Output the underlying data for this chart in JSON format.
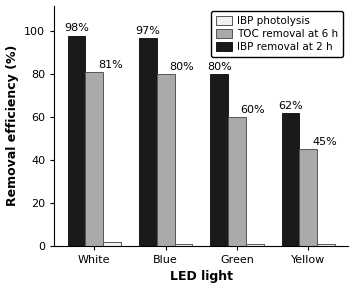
{
  "categories": [
    "White",
    "Blue",
    "Green",
    "Yellow"
  ],
  "series": [
    {
      "label": "IBP removal at 2 h",
      "values": [
        98,
        97,
        80,
        62
      ],
      "color": "#1a1a1a",
      "edgecolor": "#1a1a1a"
    },
    {
      "label": "TOC removal at 6 h",
      "values": [
        81,
        80,
        60,
        45
      ],
      "color": "#aaaaaa",
      "edgecolor": "#555555"
    },
    {
      "label": "IBP photolysis",
      "values": [
        2,
        1,
        1,
        1
      ],
      "color": "#f0f0f0",
      "edgecolor": "#555555"
    }
  ],
  "ibp_removal_labels": [
    "98%",
    "97%",
    "80%",
    "62%"
  ],
  "toc_removal_labels": [
    "81%",
    "80%",
    "60%",
    "45%"
  ],
  "legend_order": [
    2,
    1,
    0
  ],
  "legend_labels": [
    "IBP photolysis",
    "TOC removal at 6 h",
    "IBP removal at 2 h"
  ],
  "xlabel": "LED light",
  "ylabel": "Removal efficiency (%)",
  "ylim": [
    0,
    112
  ],
  "yticks": [
    0,
    20,
    40,
    60,
    80,
    100
  ],
  "bar_width": 0.25,
  "figsize": [
    3.54,
    2.89
  ],
  "dpi": 100,
  "legend_fontsize": 7.5,
  "axis_fontsize": 9,
  "tick_fontsize": 8,
  "label_fontsize": 8
}
